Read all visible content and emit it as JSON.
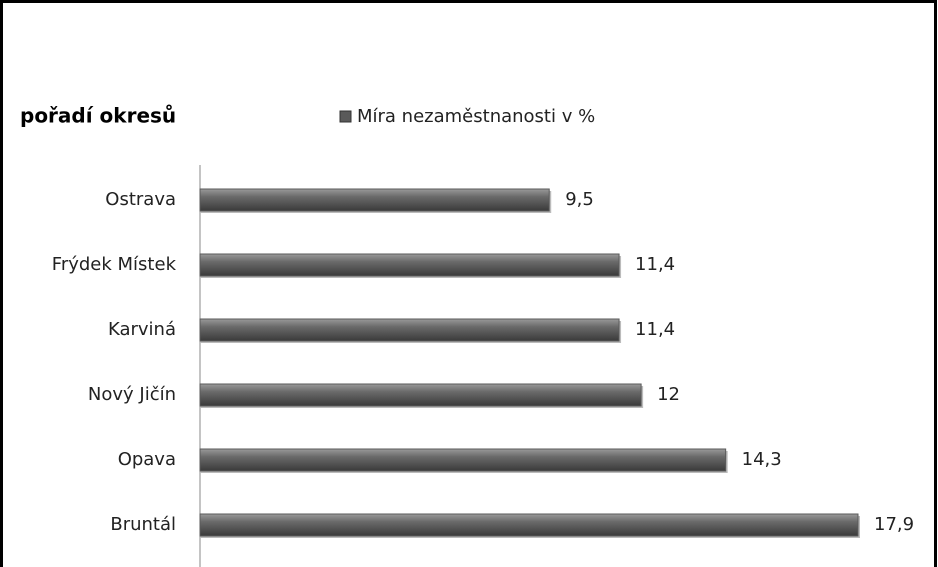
{
  "chart_data": {
    "type": "bar",
    "orientation": "horizontal",
    "title": "pořadí okresů",
    "categories": [
      "Ostrava",
      "Frýdek Místek",
      "Karviná",
      "Nový Jičín",
      "Opava",
      "Bruntál"
    ],
    "series": [
      {
        "name": "Míra nezaměstnanosti v %",
        "color": "#5a5a5a",
        "values": [
          9.5,
          11.4,
          11.4,
          12,
          14.3,
          17.9
        ],
        "value_labels": [
          "9,5",
          "11,4",
          "11,4",
          "12",
          "14,3",
          "17,9"
        ]
      }
    ],
    "legend": "top"
  }
}
